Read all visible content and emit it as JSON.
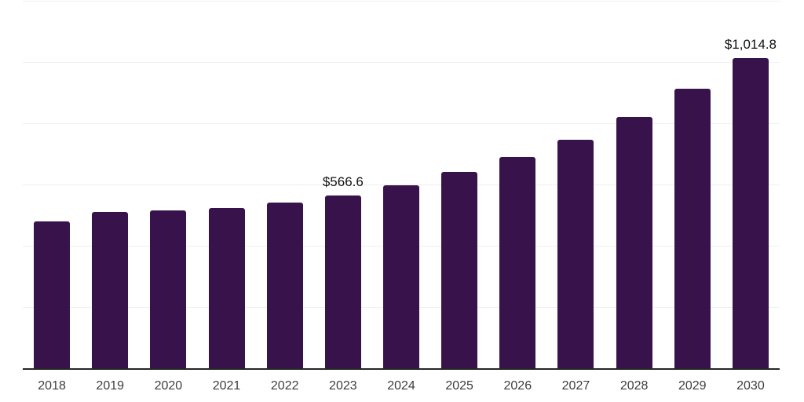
{
  "chart_data": {
    "type": "bar",
    "title": "",
    "xlabel": "",
    "ylabel": "",
    "categories": [
      "2018",
      "2019",
      "2020",
      "2021",
      "2022",
      "2023",
      "2024",
      "2025",
      "2026",
      "2027",
      "2028",
      "2029",
      "2030"
    ],
    "values": [
      482.0,
      514.0,
      517.0,
      526.0,
      543.0,
      566.6,
      600.2,
      643.5,
      692.0,
      748.9,
      823.0,
      915.3,
      1014.8
    ],
    "data_labels": {
      "2023": "$566.6",
      "2030": "$1,014.8"
    },
    "ylim": [
      0,
      1200
    ],
    "gridline_interval": 200,
    "grid": "horizontal",
    "legend_position": "none",
    "currency_prefix": "$"
  },
  "style": {
    "bar_color": "#38124a",
    "axis_line_color": "#262626",
    "gridline_color": "#efefef",
    "tick_label_color": "#3d3d3d",
    "data_label_color": "#111111",
    "background_color": "#ffffff"
  }
}
